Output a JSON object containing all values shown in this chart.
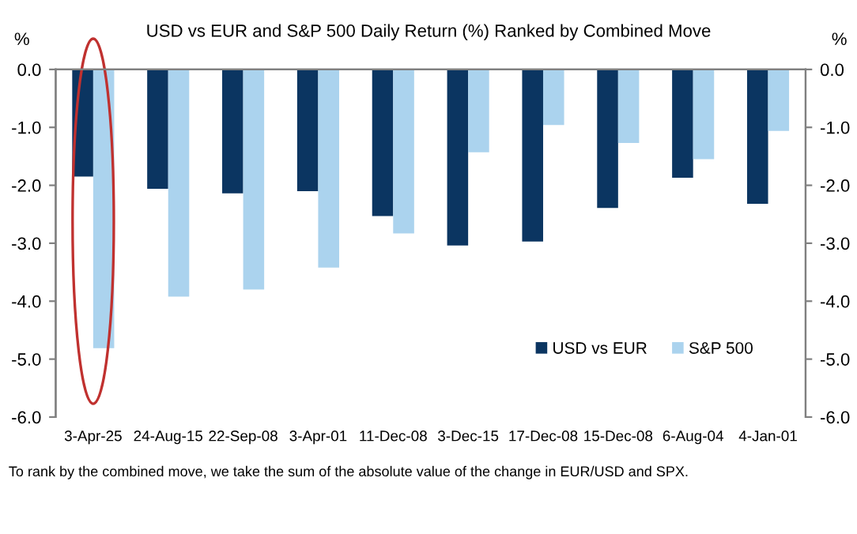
{
  "chart_data": {
    "type": "bar",
    "title": "USD vs EUR and S&P 500 Daily Return (%) Ranked by Combined Move",
    "categories": [
      "3-Apr-25",
      "24-Aug-15",
      "22-Sep-08",
      "3-Apr-01",
      "11-Dec-08",
      "3-Dec-15",
      "17-Dec-08",
      "15-Dec-08",
      "6-Aug-04",
      "4-Jan-01"
    ],
    "series": [
      {
        "name": "USD vs EUR",
        "color": "#0b3561",
        "values": [
          -1.85,
          -2.06,
          -2.14,
          -2.1,
          -2.53,
          -3.04,
          -2.97,
          -2.39,
          -1.87,
          -2.32
        ]
      },
      {
        "name": "S&P 500",
        "color": "#abd3ee",
        "values": [
          -4.81,
          -3.92,
          -3.8,
          -3.42,
          -2.83,
          -1.43,
          -0.96,
          -1.27,
          -1.55,
          -1.06
        ]
      }
    ],
    "ylabel": "%",
    "y2label": "%",
    "ylim": [
      -6,
      0
    ],
    "yticks": [
      {
        "value": -6,
        "label": "-6.0"
      },
      {
        "value": -5,
        "label": "-5.0"
      },
      {
        "value": -4,
        "label": "-4.0"
      },
      {
        "value": -3,
        "label": "-3.0"
      },
      {
        "value": -2,
        "label": "-2.0"
      },
      {
        "value": -1,
        "label": "-1.0"
      },
      {
        "value": 0,
        "label": "0.0"
      }
    ],
    "y2lim": [
      -6,
      0
    ],
    "y2ticks": [
      {
        "value": -6,
        "label": "-6.0"
      },
      {
        "value": -5,
        "label": "-5.0"
      },
      {
        "value": -4,
        "label": "-4.0"
      },
      {
        "value": -3,
        "label": "-3.0"
      },
      {
        "value": -2,
        "label": "-2.0"
      },
      {
        "value": -1,
        "label": "-1.0"
      },
      {
        "value": 0,
        "label": "0.0"
      }
    ],
    "annotations": [
      "To rank by the combined move, we take the sum of the absolute value of the change in EUR/USD and SPX."
    ],
    "legend": "bottom right",
    "grid": false
  }
}
